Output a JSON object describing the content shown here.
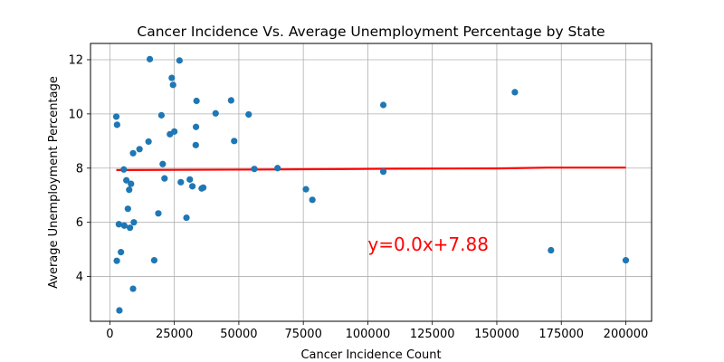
{
  "chart_data": {
    "type": "scatter",
    "title": "Cancer Incidence Vs. Average Unemployment Percentage by State",
    "xlabel": "Cancer Incidence Count",
    "ylabel": "Average Unemployment Percentage",
    "xlim": [
      -7500,
      210000
    ],
    "ylim": [
      2.35,
      12.6
    ],
    "xticks": [
      0,
      25000,
      50000,
      75000,
      100000,
      125000,
      150000,
      175000,
      200000
    ],
    "yticks": [
      4,
      6,
      8,
      10,
      12
    ],
    "grid": true,
    "point_color": "#1f77b4",
    "points": [
      {
        "x": 2500,
        "y": 9.9
      },
      {
        "x": 2800,
        "y": 9.6
      },
      {
        "x": 2700,
        "y": 4.58
      },
      {
        "x": 3500,
        "y": 5.93
      },
      {
        "x": 3700,
        "y": 2.75
      },
      {
        "x": 4300,
        "y": 4.9
      },
      {
        "x": 5400,
        "y": 7.95
      },
      {
        "x": 5600,
        "y": 5.88
      },
      {
        "x": 6400,
        "y": 7.55
      },
      {
        "x": 7000,
        "y": 6.5
      },
      {
        "x": 7500,
        "y": 7.2
      },
      {
        "x": 7800,
        "y": 5.8
      },
      {
        "x": 8200,
        "y": 7.42
      },
      {
        "x": 9000,
        "y": 8.55
      },
      {
        "x": 9000,
        "y": 3.55
      },
      {
        "x": 9300,
        "y": 6.0
      },
      {
        "x": 11500,
        "y": 8.7
      },
      {
        "x": 15000,
        "y": 8.98
      },
      {
        "x": 15500,
        "y": 12.02
      },
      {
        "x": 17200,
        "y": 4.6
      },
      {
        "x": 18800,
        "y": 6.33
      },
      {
        "x": 20000,
        "y": 9.95
      },
      {
        "x": 20500,
        "y": 8.15
      },
      {
        "x": 21200,
        "y": 7.62
      },
      {
        "x": 23300,
        "y": 9.25
      },
      {
        "x": 24000,
        "y": 11.33
      },
      {
        "x": 24500,
        "y": 11.07
      },
      {
        "x": 25000,
        "y": 9.35
      },
      {
        "x": 27000,
        "y": 11.97
      },
      {
        "x": 27500,
        "y": 7.48
      },
      {
        "x": 29700,
        "y": 6.17
      },
      {
        "x": 31000,
        "y": 7.58
      },
      {
        "x": 32000,
        "y": 7.33
      },
      {
        "x": 33300,
        "y": 8.85
      },
      {
        "x": 33400,
        "y": 9.52
      },
      {
        "x": 33600,
        "y": 10.48
      },
      {
        "x": 35600,
        "y": 7.25
      },
      {
        "x": 36200,
        "y": 7.28
      },
      {
        "x": 41000,
        "y": 10.02
      },
      {
        "x": 47000,
        "y": 10.5
      },
      {
        "x": 48200,
        "y": 9.0
      },
      {
        "x": 53800,
        "y": 9.98
      },
      {
        "x": 56000,
        "y": 7.97
      },
      {
        "x": 65000,
        "y": 8.0
      },
      {
        "x": 76000,
        "y": 7.22
      },
      {
        "x": 78500,
        "y": 6.83
      },
      {
        "x": 106000,
        "y": 10.33
      },
      {
        "x": 106000,
        "y": 7.87
      },
      {
        "x": 157000,
        "y": 10.8
      },
      {
        "x": 171000,
        "y": 4.97
      },
      {
        "x": 200000,
        "y": 4.6
      }
    ],
    "regression": {
      "color": "#ff0000",
      "points": [
        {
          "x": 2500,
          "y": 7.93
        },
        {
          "x": 60000,
          "y": 7.95
        },
        {
          "x": 110000,
          "y": 7.98
        },
        {
          "x": 150000,
          "y": 7.99
        },
        {
          "x": 170000,
          "y": 8.02
        },
        {
          "x": 200000,
          "y": 8.02
        }
      ]
    },
    "annotation": {
      "text": "y=0.0x+7.88",
      "x": 100000,
      "y": 4.95,
      "color": "#ff0000"
    }
  }
}
